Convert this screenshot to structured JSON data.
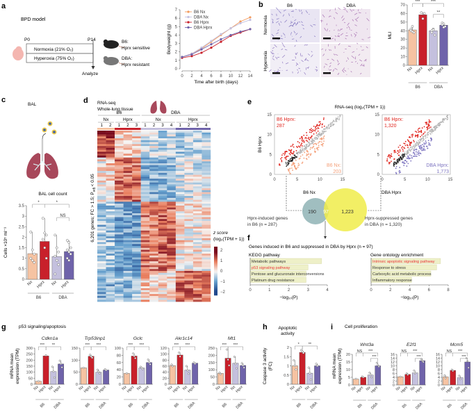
{
  "colors": {
    "b6_nx": "#f6c3a2",
    "b6_hprx": "#c8202a",
    "dba_nx": "#c4c0de",
    "dba_hprx": "#6f63aa",
    "line_b6_nx": "#f29a5c",
    "line_dba_nx": "#c3c0e0",
    "line_b6_hprx": "#c8202a",
    "line_dba_hprx": "#6f63aa",
    "venn_left": "#8fb3b5",
    "venn_right": "#f0ec4a",
    "kegg_bar": "#eef0c8",
    "highlight_text": "#e8353a",
    "scatter_red": "#e0251e",
    "scatter_orange": "#f4a07a",
    "scatter_purple": "#7d74c0",
    "scatter_grey": "#b5b5b5"
  },
  "panels": {
    "a": {
      "letter": "a",
      "title": "BPD model",
      "p0": "P0",
      "p14": "P14",
      "normoxia": "Normoxia (21% O₂)",
      "hyperoxia": "Hyperoxia (75% O₂)",
      "analyze": "Analyze",
      "b6_label": "B6:",
      "b6_desc": "Hprx sensitive",
      "dba_label": "DBA:",
      "dba_desc": "Hprx resistant"
    },
    "b": {
      "letter": "b",
      "col_b6": "B6",
      "col_dba": "DBA",
      "row_normoxia": "Normoxia",
      "row_hyperoxia": "Hyperoxia"
    },
    "c": {
      "letter": "c",
      "title": "BAL",
      "chart_title": "BAL cell count"
    },
    "d": {
      "letter": "d",
      "title_line1": "RNA-seq",
      "title_line2": "Whole-lung tissue",
      "strain_b6": "B6",
      "strain_dba": "DBA",
      "cond_labels": [
        "Nx",
        "Hprx",
        "Nx",
        "Hprx"
      ],
      "replicates": [
        "1",
        "2",
        "1",
        "2",
        "3",
        "1",
        "2",
        "3",
        "4",
        "1",
        "2",
        "3",
        "4"
      ],
      "ylabel": "6,201 genes; FC > 1.5; P",
      "ylabel_sub": "adj",
      "ylabel_end": " < 0.05",
      "legend_title1": "z score",
      "legend_title2": "(log₂(TPM + 1))",
      "legend_ticks": [
        "2",
        "1",
        "0",
        "−1",
        "−2"
      ]
    },
    "e": {
      "letter": "e",
      "title": "RNA-seq (log₂(TPM + 1))",
      "left_ylabel": "B6 Hprx",
      "left_xlabel": "B6 Nx",
      "left_top_label1": "B6 Hprx:",
      "left_top_label2": "287",
      "left_bottom_label1": "B6 Nx:",
      "left_bottom_label2": "203",
      "right_xlabel": "DBA Hprx",
      "right_top_label1": "B6 Hprx:",
      "right_top_label2": "1,320",
      "right_bottom_label1": "DBA Hprx:",
      "right_bottom_label2": "1,773",
      "ticks": [
        "0",
        "5",
        "10",
        "15"
      ],
      "venn_left": "190",
      "venn_mid": "97",
      "venn_right": "1,223",
      "venn_left_caption1": "Hprx-induced genes",
      "venn_left_caption2": "in B6 (n = 287)",
      "venn_right_caption1": "Hprx-suppressed genes",
      "venn_right_caption2": "in DBA (n = 1,320)"
    },
    "f": {
      "letter": "f",
      "title": "Genes induced in B6 and suppressed in DBA by Hprx (n = 97)",
      "kegg_title": "KEGG pathway",
      "go_title": "Gene ontology enrichment",
      "xlabel": "−log₁₀(P)"
    },
    "g": {
      "letter": "g",
      "title": "p53 signaling/apoptosis",
      "ylabel1": "mRNA mean",
      "ylabel2": "expression (TPM)"
    },
    "h": {
      "letter": "h",
      "title1": "Apoptotic",
      "title2": "activity",
      "ylabel1": "Caspase 3 activity",
      "ylabel2": "(FC)"
    },
    "i": {
      "letter": "i",
      "title": "Cell proliferation",
      "ylabel1": "mRNA mean",
      "ylabel2": "expression (TPM)"
    }
  },
  "chart_data": [
    {
      "id": "a-bodyweight",
      "type": "line",
      "xlabel": "Time after birth (days)",
      "ylabel": "Bodyweight (g)",
      "x": [
        0,
        2,
        4,
        6,
        8,
        10,
        12,
        14
      ],
      "xlim": [
        0,
        14
      ],
      "ylim": [
        0,
        7
      ],
      "yticks": [
        0,
        1,
        2,
        3,
        4,
        5,
        6,
        7
      ],
      "xticks": [
        0,
        2,
        4,
        6,
        8,
        10,
        12,
        14
      ],
      "legend": "top-left",
      "series": [
        {
          "name": "B6 Nx",
          "color_key": "line_b6_nx",
          "values": [
            1.4,
            1.8,
            2.4,
            3.2,
            4.0,
            4.8,
            5.6,
            6.1
          ]
        },
        {
          "name": "DBA Nx",
          "color_key": "line_dba_nx",
          "values": [
            1.4,
            1.8,
            2.5,
            3.3,
            4.1,
            4.8,
            5.4,
            5.8
          ]
        },
        {
          "name": "B6 Hprx",
          "color_key": "line_b6_hprx",
          "values": [
            1.3,
            1.5,
            1.9,
            2.5,
            3.2,
            3.9,
            4.3,
            4.7
          ]
        },
        {
          "name": "DBA Hprx",
          "color_key": "line_dba_hprx",
          "values": [
            1.4,
            1.7,
            2.3,
            2.9,
            3.5,
            4.0,
            4.4,
            4.7
          ]
        }
      ]
    },
    {
      "id": "b-mli",
      "type": "bar",
      "ylabel": "MLI",
      "ylim": [
        0,
        70
      ],
      "yticks": [
        0,
        10,
        20,
        30,
        40,
        50,
        60,
        70
      ],
      "categories": [
        "Nx",
        "Hprx",
        "Nx",
        "Hprx"
      ],
      "groups": [
        "B6",
        "DBA"
      ],
      "values": [
        41,
        58.5,
        40,
        46.5
      ],
      "points": [
        [
          42,
          45,
          38,
          40,
          39
        ],
        [
          61,
          54,
          60
        ],
        [
          40,
          42,
          35,
          38,
          41
        ],
        [
          49,
          48,
          45,
          47,
          44
        ]
      ],
      "significance": [
        {
          "from": 0,
          "to": 1,
          "label": "***"
        },
        {
          "from": 1,
          "to": 3,
          "label": "***"
        },
        {
          "from": 2,
          "to": 3,
          "label": "**"
        }
      ]
    },
    {
      "id": "c-bal",
      "type": "bar",
      "ylabel": "Cells ×10⁵ ml⁻¹",
      "ylim": [
        0,
        3.5
      ],
      "yticks": [
        0,
        0.5,
        1.0,
        1.5,
        2.0,
        2.5,
        3.0,
        3.5
      ],
      "categories": [
        "Nx",
        "Hprx",
        "Nx",
        "Hprx"
      ],
      "groups": [
        "B6",
        "DBA"
      ],
      "values": [
        1.22,
        1.8,
        1.08,
        1.32
      ],
      "points": [
        [
          2.25,
          1.4,
          1.2,
          1.0,
          0.9,
          0.8
        ],
        [
          2.9,
          2.2,
          2.1,
          1.9,
          1.5,
          1.0
        ],
        [
          2.1,
          1.5,
          1.3,
          1.1,
          0.9,
          0.7,
          0.25
        ],
        [
          1.85,
          1.75,
          1.5,
          1.4,
          1.3,
          1.2,
          1.0,
          0.9
        ]
      ],
      "significance": [
        {
          "from": 0,
          "to": 1,
          "label": "*"
        },
        {
          "from": 1,
          "to": 3,
          "label": "*"
        },
        {
          "from": 2,
          "to": 3,
          "label": "NS"
        }
      ]
    },
    {
      "id": "d-heatmap",
      "type": "heatmap",
      "columns": [
        "B6 Nx 1",
        "B6 Nx 2",
        "B6 Hprx 1",
        "B6 Hprx 2",
        "B6 Hprx 3",
        "DBA Nx 1",
        "DBA Nx 2",
        "DBA Nx 3",
        "DBA Nx 4",
        "DBA Hprx 1",
        "DBA Hprx 2",
        "DBA Hprx 3",
        "DBA Hprx 4"
      ],
      "gene_count": 6201,
      "color_range": [
        -2,
        2
      ],
      "clusters": [
        {
          "share": 0.16,
          "pattern": [
            1.5,
            1.5,
            0.2,
            0.4,
            0.3,
            -0.3,
            -0.2,
            -0.4,
            -0.3,
            -0.6,
            -0.5,
            -0.4,
            -0.4
          ]
        },
        {
          "share": 0.26,
          "pattern": [
            0.1,
            0.3,
            1.1,
            1.1,
            1.1,
            -0.8,
            -0.8,
            -0.8,
            -0.8,
            -0.3,
            -0.2,
            -0.2,
            -0.2
          ]
        },
        {
          "share": 0.4,
          "pattern": [
            -0.6,
            -0.6,
            -1.0,
            -1.0,
            -1.0,
            1.0,
            0.9,
            1.2,
            1.1,
            0.2,
            0.1,
            0.1,
            0.1
          ]
        },
        {
          "share": 0.18,
          "pattern": [
            -0.8,
            -0.8,
            -0.7,
            -0.7,
            -0.7,
            0.4,
            0.3,
            0.2,
            0.1,
            1.2,
            1.2,
            1.1,
            1.0
          ]
        }
      ]
    },
    {
      "id": "e-scatter-b6",
      "type": "scatter",
      "title": "RNA-seq (log₂(TPM + 1))",
      "xlabel": "B6 Nx",
      "ylabel": "B6 Hprx",
      "xlim": [
        0,
        15
      ],
      "ylim": [
        0,
        15
      ],
      "annotations": [
        {
          "text": "B6 Hprx: 287",
          "position": "top-left"
        },
        {
          "text": "B6 Nx: 203",
          "position": "bottom-right"
        }
      ]
    },
    {
      "id": "e-scatter-dba",
      "type": "scatter",
      "xlabel": "DBA Hprx",
      "ylabel": "",
      "xlim": [
        0,
        15
      ],
      "ylim": [
        0,
        15
      ],
      "annotations": [
        {
          "text": "B6 Hprx: 1,320",
          "position": "top-left"
        },
        {
          "text": "DBA Hprx: 1,773",
          "position": "bottom-right"
        }
      ]
    },
    {
      "id": "f-kegg",
      "type": "bar",
      "orientation": "horizontal",
      "title": "KEGG pathway",
      "xlabel": "−log₁₀(P)",
      "xlim": [
        0,
        4
      ],
      "xticks": [
        0,
        1,
        2,
        3,
        4
      ],
      "categories": [
        "Metabolic pathways",
        "p53 signaling pathway",
        "Pentose and glucuronate interconversions",
        "Platinum drug resistance"
      ],
      "values": [
        3.7,
        3.0,
        2.9,
        2.9
      ],
      "highlight": [
        false,
        true,
        false,
        false
      ]
    },
    {
      "id": "f-go",
      "type": "bar",
      "orientation": "horizontal",
      "title": "Gene ontology enrichment",
      "xlabel": "−log₁₀(P)",
      "xlim": [
        0,
        8
      ],
      "xticks": [
        0,
        2,
        4,
        6,
        8
      ],
      "categories": [
        "Intrinsic apoptotic signaling pathway",
        "Response to stress",
        "Carboxylic acid metabolic process",
        "Inflammatory response"
      ],
      "values": [
        7.2,
        6.8,
        6.2,
        4.2
      ],
      "highlight": [
        true,
        false,
        false,
        false
      ]
    },
    {
      "id": "g-cdkn1a",
      "type": "bar",
      "title": "Cdkn1a",
      "ylim": [
        0,
        300
      ],
      "yticks": [
        0,
        50,
        100,
        150,
        200,
        250,
        300
      ],
      "categories": [
        "Nx",
        "Hprx",
        "Nx",
        "Hprx"
      ],
      "groups": [
        "B6",
        "DBA"
      ],
      "values": [
        25,
        235,
        105,
        168
      ],
      "points": [
        [
          25
        ],
        [
          240
        ],
        [
          145,
          105,
          55
        ],
        [
          195,
          170,
          140
        ]
      ],
      "significance": [
        {
          "from": 0,
          "to": 1,
          "label": "***"
        },
        {
          "from": 1,
          "to": 3,
          "label": "**"
        }
      ]
    },
    {
      "id": "g-trp53inp1",
      "type": "bar",
      "title": "Trp53inp1",
      "ylim": [
        0,
        150
      ],
      "yticks": [
        0,
        50,
        100,
        150
      ],
      "categories": [
        "Nx",
        "Hprx",
        "Nx",
        "Hprx"
      ],
      "groups": [
        "B6",
        "DBA"
      ],
      "values": [
        68,
        116,
        50,
        59
      ],
      "points": [
        [
          68
        ],
        [
          122,
          115,
          110
        ],
        [
          60,
          52,
          45
        ],
        [
          62,
          58
        ]
      ],
      "significance": [
        {
          "from": 0,
          "to": 1,
          "label": "***"
        },
        {
          "from": 1,
          "to": 3,
          "label": "***"
        }
      ]
    },
    {
      "id": "g-gclc",
      "type": "bar",
      "title": "Gclc",
      "ylim": [
        0,
        100
      ],
      "yticks": [
        0,
        20,
        40,
        60,
        80,
        100
      ],
      "categories": [
        "Nx",
        "Hprx",
        "Nx",
        "Hprx"
      ],
      "groups": [
        "B6",
        "DBA"
      ],
      "values": [
        30,
        78,
        45,
        60
      ],
      "points": [
        [
          30
        ],
        [
          85,
          78,
          72
        ],
        [
          48,
          45,
          42
        ],
        [
          68,
          60,
          55
        ]
      ],
      "significance": [
        {
          "from": 0,
          "to": 1,
          "label": "***"
        },
        {
          "from": 1,
          "to": 3,
          "label": "***"
        }
      ]
    },
    {
      "id": "g-akr1c14",
      "type": "bar",
      "title": "Akr1c14",
      "ylim": [
        0,
        120
      ],
      "yticks": [
        0,
        20,
        40,
        60,
        80,
        100,
        120
      ],
      "categories": [
        "Nx",
        "Hprx",
        "Nx",
        "Hprx"
      ],
      "groups": [
        "B6",
        "DBA"
      ],
      "values": [
        62,
        97,
        47,
        70
      ],
      "points": [
        [
          65,
          60
        ],
        [
          105,
          92
        ],
        [
          60,
          45,
          35
        ],
        [
          72,
          68
        ]
      ],
      "significance": [
        {
          "from": 0,
          "to": 1,
          "label": "***"
        },
        {
          "from": 1,
          "to": 3,
          "label": "***"
        }
      ]
    },
    {
      "id": "g-mt1",
      "type": "bar",
      "title": "Mt1",
      "ylim": [
        0,
        250
      ],
      "yticks": [
        0,
        50,
        100,
        150,
        200,
        250
      ],
      "categories": [
        "Nx",
        "Hprx",
        "Nx",
        "Hprx"
      ],
      "groups": [
        "B6",
        "DBA"
      ],
      "values": [
        75,
        180,
        145,
        130
      ],
      "points": [
        [
          80,
          70
        ],
        [
          240,
          170,
          130
        ],
        [
          190,
          140,
          110
        ],
        [
          145,
          130,
          115
        ]
      ],
      "significance": [
        {
          "from": 0,
          "to": 1,
          "label": "***"
        },
        {
          "from": 1,
          "to": 3,
          "label": "***"
        }
      ]
    },
    {
      "id": "h-caspase3",
      "type": "bar",
      "title": "Apoptotic activity",
      "ylabel": "Caspase 3 activity (FC)",
      "ylim": [
        0,
        2.0
      ],
      "yticks": [
        0,
        0.5,
        1.0,
        1.5,
        2.0
      ],
      "categories": [
        "Nx",
        "Hprx",
        "Nx",
        "Hprx"
      ],
      "groups": [
        "B6",
        "DBA"
      ],
      "values": [
        1.0,
        1.73,
        0.6,
        1.0
      ],
      "points": [
        [
          1.3,
          1.0,
          0.8
        ],
        [
          1.85,
          1.78,
          1.7
        ],
        [
          0.9,
          0.6,
          0.25
        ],
        [
          1.1,
          1.0
        ]
      ],
      "significance": [
        {
          "from": 0,
          "to": 1,
          "label": "*"
        },
        {
          "from": 1,
          "to": 3,
          "label": "**"
        }
      ]
    },
    {
      "id": "i-wnt3a",
      "type": "bar",
      "title": "Wnt3a",
      "ylim": [
        0,
        20
      ],
      "yticks": [
        0,
        5,
        10,
        15,
        20
      ],
      "categories": [
        "Nx",
        "Hprx",
        "Nx",
        "Hprx"
      ],
      "groups": [
        "B6",
        "DBA"
      ],
      "values": [
        3.8,
        5.0,
        6.5,
        12.5
      ],
      "points": [
        [
          4.0
        ],
        [
          5.5,
          5.0
        ],
        [
          8.0,
          6.5,
          5.0
        ],
        [
          14.5,
          13.0,
          12.0
        ]
      ],
      "significance": [
        {
          "from": 0,
          "to": 1,
          "label": "NS"
        },
        {
          "from": 1,
          "to": 3,
          "label": "***"
        },
        {
          "from": 2,
          "to": 3,
          "label": "***"
        }
      ]
    },
    {
      "id": "i-e2f1",
      "type": "bar",
      "title": "E2f1",
      "ylim": [
        0,
        16
      ],
      "yticks": [
        0,
        2,
        4,
        6,
        8,
        10,
        12,
        14,
        16
      ],
      "categories": [
        "Nx",
        "Hprx",
        "Nx",
        "Hprx"
      ],
      "groups": [
        "B6",
        "DBA"
      ],
      "values": [
        4.3,
        5.5,
        6.3,
        12.7
      ],
      "points": [
        [
          4.3
        ],
        [
          6.0,
          5.3
        ],
        [
          7.5,
          6.0
        ],
        [
          13.5,
          12.5,
          12.0
        ]
      ],
      "significance": [
        {
          "from": 0,
          "to": 1,
          "label": "NS"
        },
        {
          "from": 1,
          "to": 3,
          "label": "***"
        },
        {
          "from": 2,
          "to": 3,
          "label": "***"
        }
      ]
    },
    {
      "id": "i-mcm5",
      "type": "bar",
      "title": "Mcm5",
      "ylim": [
        0,
        16
      ],
      "yticks": [
        0,
        2,
        4,
        6,
        8,
        10,
        12,
        14,
        16
      ],
      "categories": [
        "Nx",
        "Hprx",
        "Nx",
        "Hprx"
      ],
      "groups": [
        "B6",
        "DBA"
      ],
      "values": [
        4.2,
        7.6,
        3.8,
        12.0
      ],
      "points": [
        [
          5.0,
          3.5
        ],
        [
          8.0,
          7.3
        ],
        [
          4.8,
          3.0
        ],
        [
          14.0,
          12.5,
          9.0
        ]
      ],
      "significance": [
        {
          "from": 0,
          "to": 1,
          "label": "NS"
        },
        {
          "from": 1,
          "to": 3,
          "label": "***"
        },
        {
          "from": 2,
          "to": 3,
          "label": "***"
        }
      ]
    }
  ]
}
